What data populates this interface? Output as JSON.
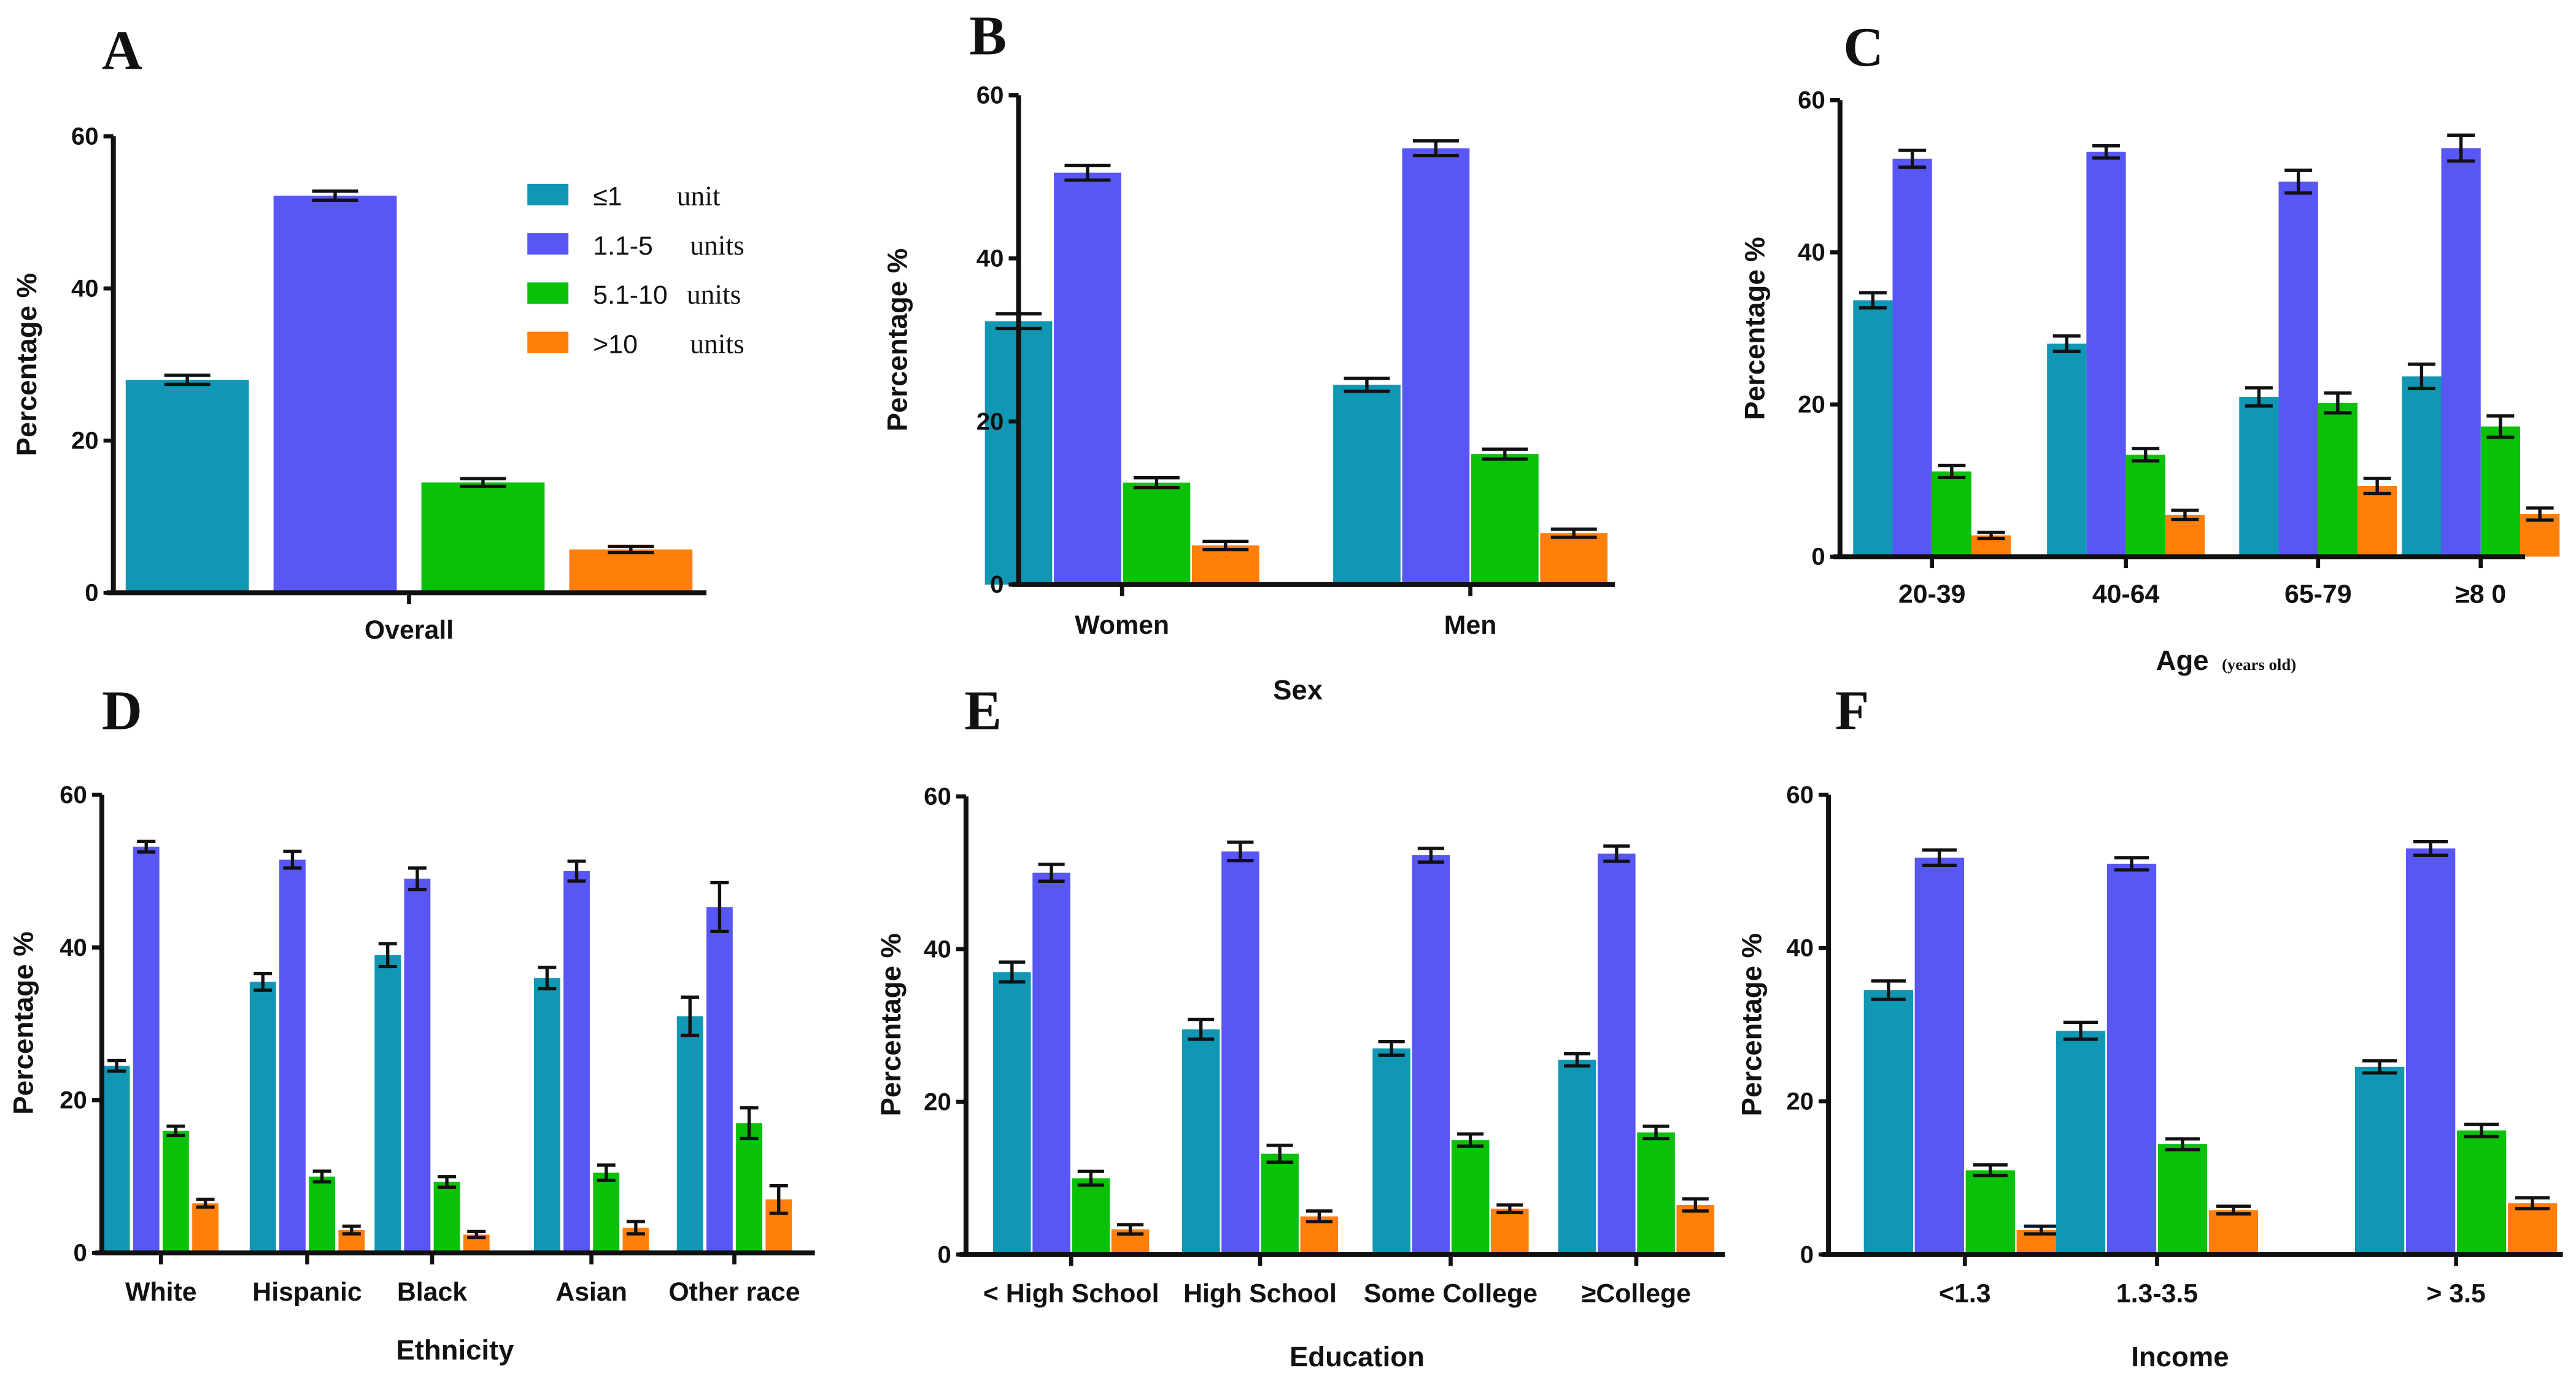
{
  "colors": {
    "le1": "#1197b3",
    "u1_5": "#5856f5",
    "u5_10": "#0ac10a",
    "gt10": "#ff7f0a"
  },
  "legend": [
    {
      "key": "le1",
      "label": "≤1",
      "unit": "unit"
    },
    {
      "key": "u1_5",
      "label": "1.1-5",
      "unit": "units"
    },
    {
      "key": "u5_10",
      "label": "5.1-10",
      "unit": "units"
    },
    {
      "key": "gt10",
      "label": ">10",
      "unit": "units"
    }
  ],
  "chart_data": [
    {
      "panel": "A",
      "type": "bar",
      "xlabel": "",
      "ylabel": "Percentage %",
      "ylim": [
        0,
        60
      ],
      "yticks": [
        "0",
        "20",
        "40",
        "60"
      ],
      "categories": [
        "Overall"
      ],
      "series": [
        {
          "name": "≤1 unit",
          "values": [
            28.0
          ],
          "err": [
            0.6
          ]
        },
        {
          "name": "1.1-5 units",
          "values": [
            52.2
          ],
          "err": [
            0.6
          ]
        },
        {
          "name": "5.1-10 units",
          "values": [
            14.5
          ],
          "err": [
            0.5
          ]
        },
        {
          "name": ">10 units",
          "values": [
            5.7
          ],
          "err": [
            0.4
          ]
        }
      ]
    },
    {
      "panel": "B",
      "type": "bar",
      "xlabel": "Sex",
      "ylabel": "Percentage %",
      "ylim": [
        0,
        60
      ],
      "yticks": [
        "0",
        "20",
        "40",
        "60"
      ],
      "categories": [
        "Women",
        "Men"
      ],
      "series": [
        {
          "name": "≤1 unit",
          "values": [
            32.3,
            24.5
          ],
          "err": [
            0.9,
            0.8
          ]
        },
        {
          "name": "1.1-5 units",
          "values": [
            50.5,
            53.5
          ],
          "err": [
            0.9,
            0.9
          ]
        },
        {
          "name": "5.1-10 units",
          "values": [
            12.5,
            16.0
          ],
          "err": [
            0.6,
            0.6
          ]
        },
        {
          "name": ">10 units",
          "values": [
            4.8,
            6.3
          ],
          "err": [
            0.5,
            0.5
          ]
        }
      ]
    },
    {
      "panel": "C",
      "type": "bar",
      "xlabel": "Age",
      "xlabel_suffix": "(years old)",
      "ylabel": "Percentage %",
      "ylim": [
        0,
        60
      ],
      "yticks": [
        "0",
        "20",
        "40",
        "60"
      ],
      "categories": [
        "20-39",
        "40-64",
        "65-79",
        "≥8 0"
      ],
      "series": [
        {
          "name": "≤1 unit",
          "values": [
            33.7,
            28.0,
            21.0,
            23.7
          ],
          "err": [
            1.0,
            1.0,
            1.2,
            1.6
          ]
        },
        {
          "name": "1.1-5 units",
          "values": [
            52.3,
            53.2,
            49.3,
            53.7
          ],
          "err": [
            1.1,
            0.8,
            1.5,
            1.7
          ]
        },
        {
          "name": "5.1-10 units",
          "values": [
            11.2,
            13.4,
            20.2,
            17.1
          ],
          "err": [
            0.8,
            0.8,
            1.3,
            1.4
          ]
        },
        {
          "name": ">10 units",
          "values": [
            2.8,
            5.5,
            9.3,
            5.6
          ],
          "err": [
            0.4,
            0.6,
            1.0,
            0.8
          ]
        }
      ]
    },
    {
      "panel": "D",
      "type": "bar",
      "xlabel": "Ethnicity",
      "ylabel": "Percentage %",
      "ylim": [
        0,
        60
      ],
      "yticks": [
        "0",
        "20",
        "40",
        "60"
      ],
      "categories": [
        "White",
        "Hispanic",
        "Black",
        "Asian",
        "Other race"
      ],
      "series": [
        {
          "name": "≤1 unit",
          "values": [
            24.5,
            35.5,
            39.0,
            36.0,
            31.0
          ],
          "err": [
            0.7,
            1.1,
            1.5,
            1.4,
            2.5
          ]
        },
        {
          "name": "1.1-5 units",
          "values": [
            53.2,
            51.5,
            49.0,
            50.0,
            45.3
          ],
          "err": [
            0.7,
            1.1,
            1.4,
            1.3,
            3.2
          ]
        },
        {
          "name": "5.1-10 units",
          "values": [
            16.0,
            10.0,
            9.3,
            10.5,
            17.0
          ],
          "err": [
            0.6,
            0.7,
            0.7,
            1.0,
            2.0
          ]
        },
        {
          "name": ">10 units",
          "values": [
            6.5,
            3.0,
            2.4,
            3.3,
            7.0
          ],
          "err": [
            0.5,
            0.5,
            0.4,
            0.8,
            1.8
          ]
        }
      ]
    },
    {
      "panel": "E",
      "type": "bar",
      "xlabel": "Education",
      "ylabel": "Percentage %",
      "ylim": [
        0,
        60
      ],
      "yticks": [
        "0",
        "20",
        "40",
        "60"
      ],
      "categories": [
        "< High School",
        "High School",
        "Some College",
        "≥College"
      ],
      "series": [
        {
          "name": "≤1 unit",
          "values": [
            37.0,
            29.5,
            27.0,
            25.5
          ],
          "err": [
            1.3,
            1.3,
            0.9,
            0.8
          ]
        },
        {
          "name": "1.1-5 units",
          "values": [
            50.0,
            52.8,
            52.3,
            52.5
          ],
          "err": [
            1.1,
            1.2,
            0.9,
            1.0
          ]
        },
        {
          "name": "5.1-10 units",
          "values": [
            10.0,
            13.2,
            15.0,
            16.0
          ],
          "err": [
            0.9,
            1.1,
            0.8,
            0.8
          ]
        },
        {
          "name": ">10 units",
          "values": [
            3.3,
            5.0,
            6.0,
            6.5
          ],
          "err": [
            0.6,
            0.7,
            0.5,
            0.8
          ]
        }
      ]
    },
    {
      "panel": "F",
      "type": "bar",
      "xlabel": "Income",
      "ylabel": "Percentage %",
      "ylim": [
        0,
        60
      ],
      "yticks": [
        "0",
        "20",
        "40",
        "60"
      ],
      "categories": [
        "<1.3",
        "1.3-3.5",
        "> 3.5"
      ],
      "series": [
        {
          "name": "≤1 unit",
          "values": [
            34.5,
            29.2,
            24.5
          ],
          "err": [
            1.2,
            1.1,
            0.8
          ]
        },
        {
          "name": "1.1-5 units",
          "values": [
            51.8,
            51.0,
            53.0
          ],
          "err": [
            1.0,
            0.8,
            0.9
          ]
        },
        {
          "name": "5.1-10 units",
          "values": [
            11.0,
            14.4,
            16.2
          ],
          "err": [
            0.7,
            0.7,
            0.8
          ]
        },
        {
          "name": ">10 units",
          "values": [
            3.2,
            5.8,
            6.7
          ],
          "err": [
            0.5,
            0.5,
            0.7
          ]
        }
      ]
    }
  ]
}
